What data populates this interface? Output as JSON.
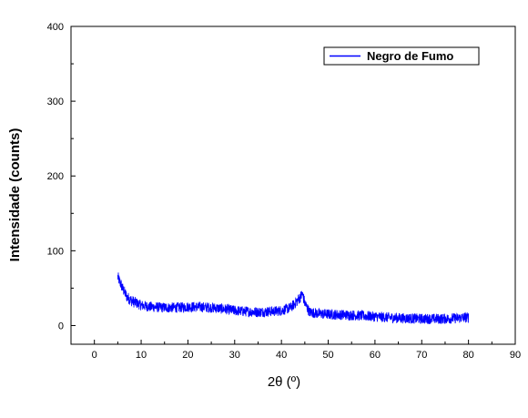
{
  "chart_data": {
    "type": "line",
    "title": "",
    "xlabel": "2θ (º)",
    "ylabel": "Intensidade (counts)",
    "xlim": [
      -5,
      90
    ],
    "ylim": [
      -25,
      400
    ],
    "x_ticks": [
      0,
      10,
      20,
      30,
      40,
      50,
      60,
      70,
      80,
      90
    ],
    "y_ticks": [
      0,
      100,
      200,
      300,
      400
    ],
    "grid": false,
    "legend_position": "top-right",
    "series": [
      {
        "name": "Negro de Fumo",
        "color": "#0000ff",
        "noise_band": 7,
        "x": [
          5,
          6,
          7,
          8,
          9,
          10,
          12,
          15,
          18,
          20,
          22,
          25,
          28,
          30,
          32,
          35,
          38,
          40,
          42,
          43,
          44,
          44.5,
          45,
          46,
          48,
          50,
          55,
          60,
          65,
          70,
          75,
          78,
          80
        ],
        "y": [
          65,
          50,
          38,
          33,
          30,
          27,
          25,
          24,
          24,
          25,
          25,
          24,
          22,
          20,
          19,
          18,
          19,
          20,
          24,
          30,
          38,
          42,
          30,
          18,
          16,
          15,
          14,
          12,
          10,
          9,
          9,
          10,
          11
        ]
      }
    ]
  }
}
